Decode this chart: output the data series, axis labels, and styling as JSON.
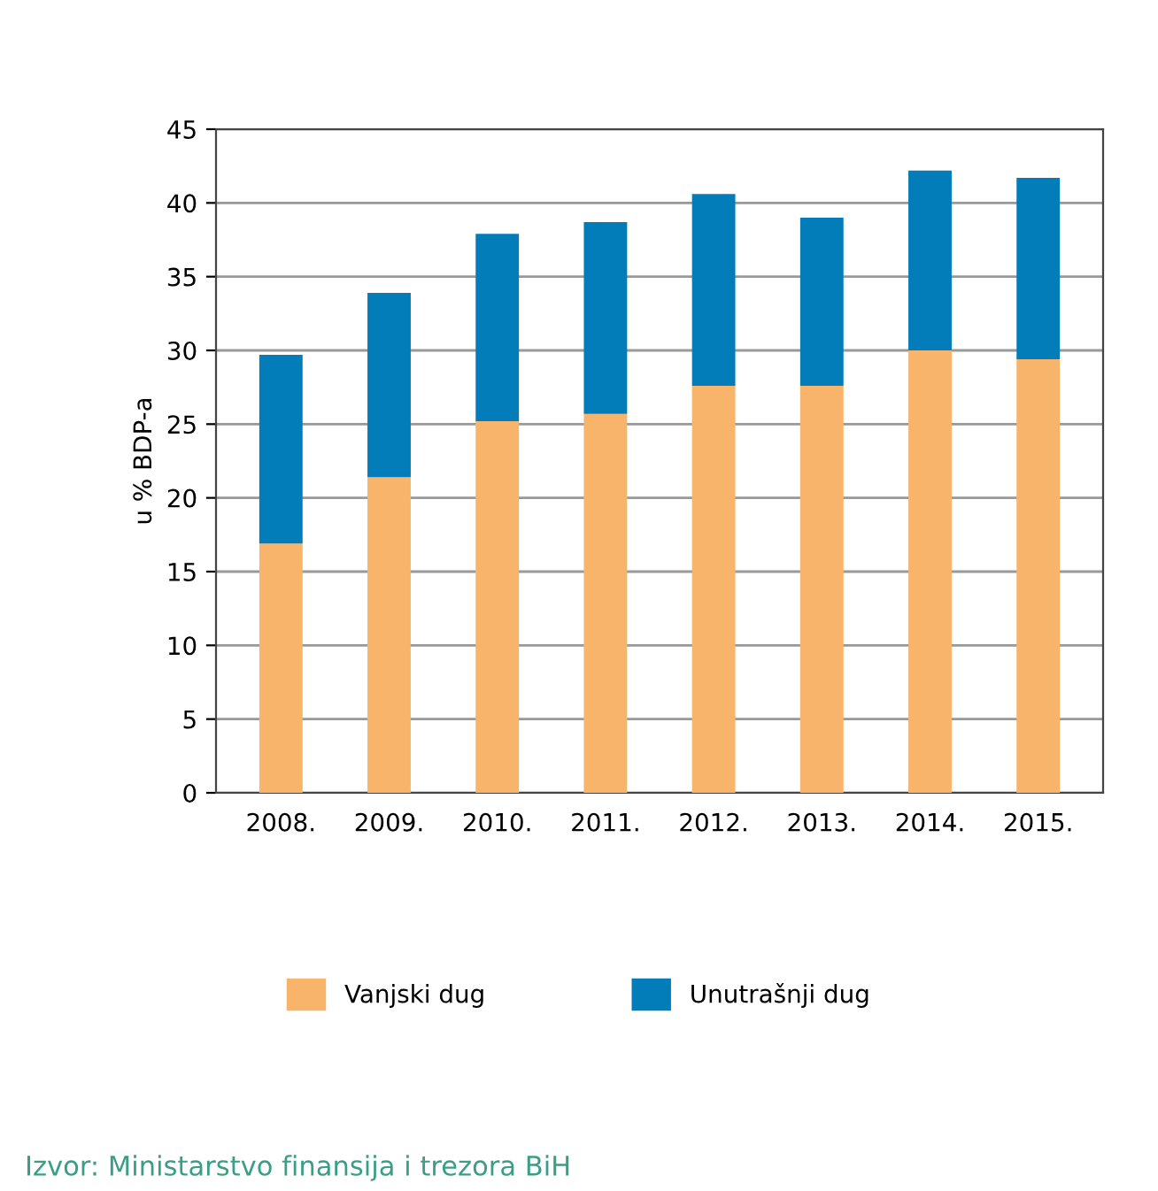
{
  "chart_data": {
    "type": "bar",
    "stacked": true,
    "ylabel": "u % BDP-a",
    "categories": [
      "2008.",
      "2009.",
      "2010.",
      "2011.",
      "2012.",
      "2013.",
      "2014.",
      "2015."
    ],
    "series": [
      {
        "name": "Vanjski dug",
        "color": "#f8b46b",
        "values": [
          16.9,
          21.4,
          25.2,
          25.7,
          27.6,
          27.6,
          30.0,
          29.4
        ]
      },
      {
        "name": "Unutrašnji dug",
        "color": "#027dba",
        "values": [
          12.8,
          12.5,
          12.7,
          13.0,
          13.0,
          11.4,
          12.2,
          12.3
        ]
      }
    ],
    "ylim": [
      0,
      45
    ],
    "yticks": [
      0,
      5,
      10,
      15,
      20,
      25,
      30,
      35,
      40,
      45
    ],
    "grid": "y",
    "legend": "bottom",
    "annotations": [
      "Izvor: Ministarstvo finansija i trezora BiH"
    ]
  }
}
